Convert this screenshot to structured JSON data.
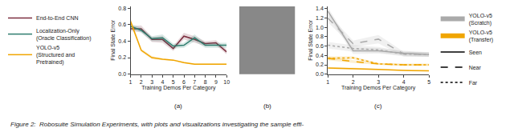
{
  "chart_data": [
    {
      "type": "line",
      "xlabel": "Training Demos Per Category",
      "ylabel": "Final State Error",
      "x": [
        1,
        2,
        3,
        4,
        5,
        6,
        7,
        8,
        9,
        10
      ],
      "xlim": [
        1,
        10
      ],
      "ylim": [
        0.0,
        0.82
      ],
      "xticks": [
        1,
        2,
        3,
        4,
        5,
        6,
        7,
        8,
        9,
        10
      ],
      "yticks": [
        {
          "value": 0.0,
          "label": "0.0"
        },
        0.2,
        0.4,
        0.6,
        0.8
      ],
      "grid": false,
      "legend": "left",
      "annotations": [
        "(a)"
      ],
      "series": [
        {
          "name": "End-to-End CNN",
          "color": "#7b2d3e",
          "values": [
            0.55,
            0.55,
            0.42,
            0.42,
            0.31,
            0.46,
            0.42,
            0.37,
            0.38,
            0.27
          ],
          "std": [
            0.03,
            0.04,
            0.03,
            0.04,
            0.03,
            0.04,
            0.04,
            0.03,
            0.03,
            0.03
          ]
        },
        {
          "name": "Localization-Only\n(Oracle Classification)",
          "color": "#2e7d6e",
          "values": [
            0.58,
            0.53,
            0.43,
            0.44,
            0.34,
            0.35,
            0.44,
            0.35,
            0.35,
            0.35
          ],
          "std": [
            0.03,
            0.03,
            0.03,
            0.04,
            0.03,
            0.03,
            0.04,
            0.03,
            0.03,
            0.03
          ]
        },
        {
          "name": "YOLO-v5\n(Structured and\nPretrained)",
          "color": "#f0a500",
          "values": [
            0.64,
            0.29,
            0.2,
            0.18,
            0.17,
            0.14,
            0.12,
            0.12,
            0.12,
            0.12
          ],
          "std": [
            0.04,
            0.02,
            0.02,
            0.01,
            0.01,
            0.01,
            0.01,
            0.01,
            0.01,
            0.01
          ]
        }
      ]
    },
    {
      "type": "line",
      "xlabel": "Training Demos Per Category",
      "ylabel": "Final State Error",
      "x": [
        1,
        2,
        3,
        4,
        5
      ],
      "xlim": [
        1,
        5
      ],
      "ylim": [
        0.0,
        1.45
      ],
      "xticks": [
        1,
        2,
        3,
        4,
        5
      ],
      "yticks": [
        {
          "value": 0.0,
          "label": "0.0"
        },
        0.2,
        0.4,
        0.6,
        0.8,
        {
          "value": 1.0,
          "label": "1.0"
        },
        1.2,
        1.4
      ],
      "grid": false,
      "legend": "right",
      "annotations": [
        "(c)"
      ],
      "series": [
        {
          "name": "Seen",
          "group": "YOLO-v5\n(Scratch)",
          "color": "#aaaaaa",
          "line_style": "solid",
          "values": [
            1.35,
            0.5,
            0.5,
            0.45,
            0.42
          ],
          "std": [
            0.08,
            0.07,
            0.06,
            0.05,
            0.05
          ]
        },
        {
          "name": "Near",
          "group": "YOLO-v5\n(Scratch)",
          "color": "#aaaaaa",
          "line_style": "dashed",
          "values": [
            1.2,
            0.65,
            0.75,
            0.43,
            0.42
          ],
          "std": [
            0.09,
            0.07,
            0.09,
            0.05,
            0.05
          ]
        },
        {
          "name": "Far",
          "group": "YOLO-v5\n(Scratch)",
          "color": "#aaaaaa",
          "line_style": "dotted",
          "values": [
            0.62,
            0.55,
            0.52,
            0.43,
            0.42
          ],
          "std": [
            0.07,
            0.07,
            0.06,
            0.05,
            0.05
          ]
        },
        {
          "name": "Seen",
          "group": "YOLO-v5\n(Transfer)",
          "color": "#f0a500",
          "line_style": "solid",
          "values": [
            0.13,
            0.12,
            0.1,
            0.08,
            0.07
          ],
          "std": [
            0.02,
            0.02,
            0.01,
            0.01,
            0.01
          ]
        },
        {
          "name": "Near",
          "group": "YOLO-v5\n(Transfer)",
          "color": "#f0a500",
          "line_style": "dashed",
          "values": [
            0.34,
            0.27,
            0.22,
            0.2,
            0.2
          ],
          "std": [
            0.04,
            0.03,
            0.02,
            0.02,
            0.02
          ]
        },
        {
          "name": "Far",
          "group": "YOLO-v5\n(Transfer)",
          "color": "#f0a500",
          "line_style": "dotted",
          "values": [
            0.34,
            0.35,
            0.22,
            0.2,
            0.2
          ],
          "std": [
            0.04,
            0.03,
            0.02,
            0.02,
            0.02
          ]
        }
      ]
    }
  ],
  "annotations": [
    "(b)",
    "Figure 2:  Robosuite Simulation Experiments, with plots and visualizations investigating the sample effi-"
  ]
}
